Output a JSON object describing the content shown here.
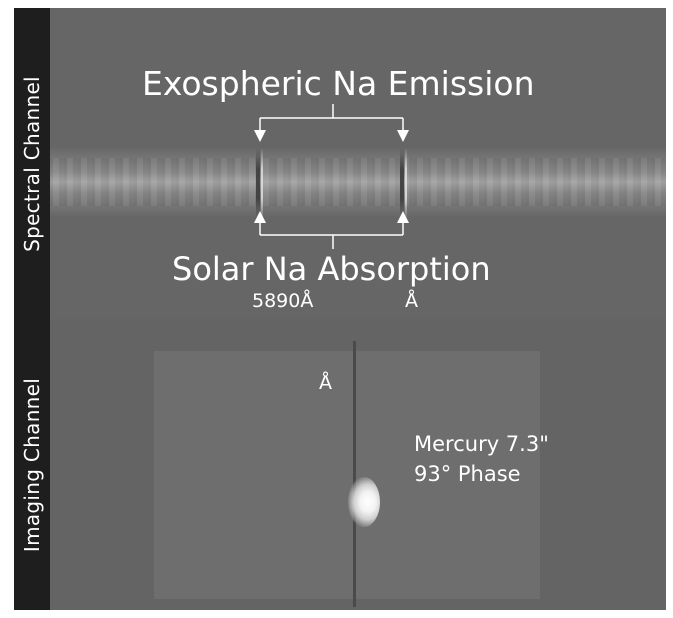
{
  "figure": {
    "top_channel_label": "Spectral Channel",
    "bottom_channel_label": "Imaging Channel",
    "emission_label": "Exospheric Na Emission",
    "absorption_label": "Solar Na Absorption",
    "wavelength_label_left": "5890Å",
    "wavelength_label_right": "Å",
    "slit_label": "Å",
    "target_line1": "Mercury 7.3\"",
    "target_line2": "93° Phase"
  },
  "colors": {
    "panel_background": "#666666",
    "label_bar": "#1e1e1e",
    "text": "#ffffff"
  }
}
